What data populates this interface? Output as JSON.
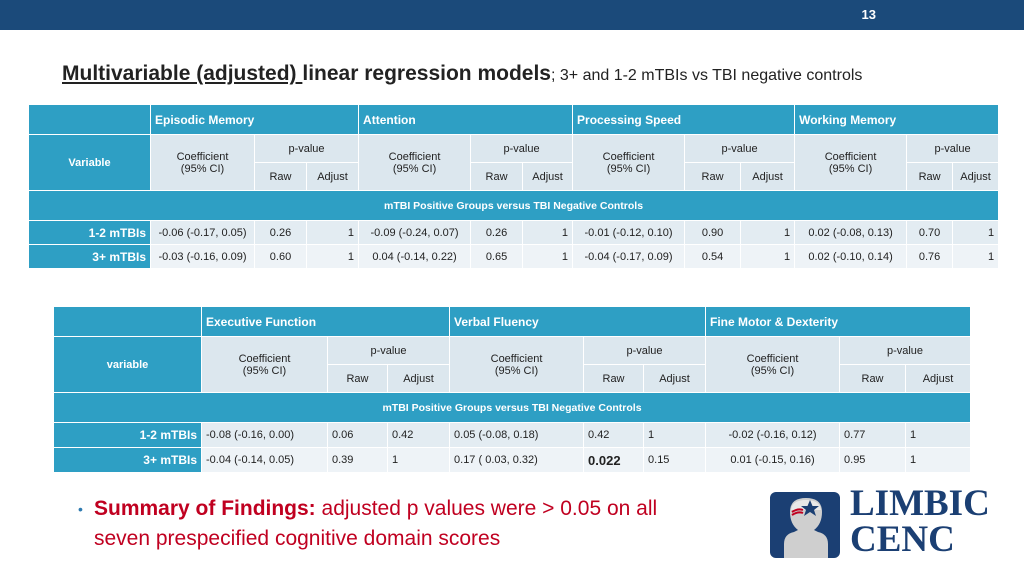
{
  "slide": {
    "number": "13"
  },
  "title": {
    "part1": "Multivariable (adjusted) ",
    "part2": "linear regression models",
    "part3": "; 3+ and 1-2 mTBIs vs TBI negative controls"
  },
  "table1": {
    "domains": [
      "Episodic Memory",
      "Attention",
      "Processing Speed",
      "Working Memory"
    ],
    "variable_label": "Variable",
    "coef_line1": "Coefficient",
    "coef_line2": "(95% CI)",
    "pvalue_label": "p-value",
    "raw_label": "Raw",
    "adjust_label": "Adjust",
    "section_label": "mTBI Positive Groups versus TBI Negative Controls",
    "rows": [
      {
        "label": "1-2 mTBIs",
        "cells": [
          "-0.06 (-0.17, 0.05)",
          "0.26",
          "1",
          "-0.09 (-0.24, 0.07)",
          "0.26",
          "1",
          "-0.01 (-0.12, 0.10)",
          "0.90",
          "1",
          "0.02 (-0.08, 0.13)",
          "0.70",
          "1"
        ]
      },
      {
        "label": "3+ mTBIs",
        "cells": [
          "-0.03 (-0.16, 0.09)",
          "0.60",
          "1",
          "0.04 (-0.14, 0.22)",
          "0.65",
          "1",
          "-0.04 (-0.17, 0.09)",
          "0.54",
          "1",
          "0.02 (-0.10, 0.14)",
          "0.76",
          "1"
        ]
      }
    ]
  },
  "table2": {
    "domains": [
      "Executive Function",
      "Verbal Fluency",
      "Fine Motor & Dexterity"
    ],
    "variable_label": "variable",
    "coef_line1": "Coefficient",
    "coef_line2": "(95% CI)",
    "pvalue_label": "p-value",
    "raw_label": "Raw",
    "adjust_label": "Adjust",
    "section_label": "mTBI Positive Groups versus TBI Negative Controls",
    "rows": [
      {
        "label": "1-2 mTBIs",
        "cells": [
          "-0.08 (-0.16, 0.00)",
          "0.06",
          "0.42",
          "0.05 (-0.08, 0.18)",
          "0.42",
          "1",
          "-0.02 (-0.16, 0.12)",
          "0.77",
          "1"
        ]
      },
      {
        "label": "3+ mTBIs",
        "cells": [
          "-0.04 (-0.14, 0.05)",
          "0.39",
          "1",
          "0.17 ( 0.03, 0.32)",
          "0.022",
          "0.15",
          "0.01 (-0.15, 0.16)",
          "0.95",
          "1"
        ]
      }
    ]
  },
  "summary": {
    "bullet": "•",
    "label": "Summary of Findings:",
    "text_line1": " adjusted p values were > 0.05 on all",
    "text_line2": "seven prespecified cognitive domain scores"
  },
  "logo": {
    "line1": "LIMBIC",
    "line2": "CENC"
  },
  "colors": {
    "topbar": "#1b4a7a",
    "header": "#2e9fc4",
    "summary": "#c00020",
    "logo": "#1b3f73"
  }
}
